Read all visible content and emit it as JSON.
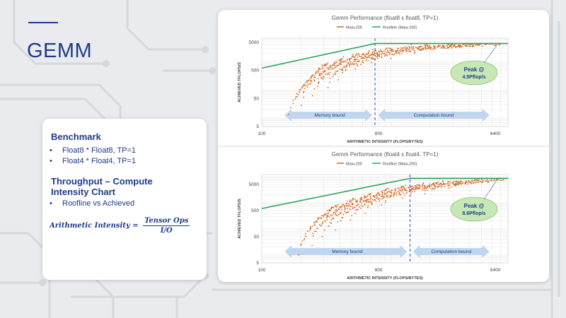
{
  "slide": {
    "title": "GEMM",
    "benchmark_heading": "Benchmark",
    "benchmark_items": [
      "Float8 * Float8, TP=1",
      "Float4 * Float4, TP=1"
    ],
    "throughput_heading_line1": "Throughput – Compute",
    "throughput_heading_line2": "Intensity Chart",
    "throughput_items": [
      "Roofline vs Achieved"
    ],
    "formula_lhs": "Arithmetic Intensity =",
    "formula_num": "Tensor Ops",
    "formula_den": "I/O"
  },
  "colors": {
    "accent": "#1f3a8a",
    "maia": "#d2691e",
    "roofline": "#2ca35a",
    "ridge": "#2f4f9f",
    "arrow": "#b8d2ec",
    "callout": "#c6e8b4"
  },
  "chart_data": [
    {
      "type": "scatter",
      "title": "Gemm Performance (float8 x float8, TP=1)",
      "xlabel": "ARITHMETIC INTENSITY (FLOPS/BYTES)",
      "ylabel": "ACHIEVED TFLOPS/S",
      "x_scale": "log",
      "y_scale": "log",
      "xlim": [
        100,
        8000
      ],
      "ylim": [
        5,
        7000
      ],
      "x_ticks": [
        "100",
        "800",
        "6400"
      ],
      "y_ticks": [
        "5000",
        "500",
        "50",
        "5"
      ],
      "legend": [
        "Maia-200",
        "Roofline (Maia-200)"
      ],
      "roofline": {
        "x": [
          100,
          750,
          8000
        ],
        "y": [
          600,
          4500,
          4500
        ]
      },
      "ridge_x": 750,
      "regions": [
        "Memory bound",
        "Computation bound"
      ],
      "annotation": "Peak @\n4.5Pflop/s",
      "bands": [
        {
          "x0": 165,
          "x1": 320,
          "y0": 12,
          "y1": 900
        },
        {
          "x0": 200,
          "x1": 430,
          "y0": 30,
          "y1": 1400
        },
        {
          "x0": 250,
          "x1": 560,
          "y0": 60,
          "y1": 2000
        },
        {
          "x0": 320,
          "x1": 750,
          "y0": 120,
          "y1": 2700
        },
        {
          "x0": 400,
          "x1": 1000,
          "y0": 250,
          "y1": 3200
        },
        {
          "x0": 520,
          "x1": 1400,
          "y0": 500,
          "y1": 3600
        },
        {
          "x0": 700,
          "x1": 2000,
          "y0": 900,
          "y1": 3900
        },
        {
          "x0": 1000,
          "x1": 3000,
          "y0": 1500,
          "y1": 4100
        },
        {
          "x0": 1500,
          "x1": 4500,
          "y0": 2200,
          "y1": 4250
        },
        {
          "x0": 2500,
          "x1": 7000,
          "y0": 3000,
          "y1": 4400
        }
      ]
    },
    {
      "type": "scatter",
      "title": "Gemm Performance (float4 x float4, TP=1)",
      "xlabel": "ARITHMETIC INTENSITY (FLOPS/BYTES)",
      "ylabel": "ACHIEVED TFLOPS/S",
      "x_scale": "log",
      "y_scale": "log",
      "xlim": [
        100,
        8000
      ],
      "ylim": [
        5,
        12000
      ],
      "x_ticks": [
        "100",
        "800",
        "6400"
      ],
      "y_ticks": [
        "5000",
        "500",
        "50",
        "5"
      ],
      "legend": [
        "Maia-200",
        "Roofline (Maia-200)"
      ],
      "roofline": {
        "x": [
          100,
          1400,
          8000
        ],
        "y": [
          600,
          8600,
          8600
        ]
      },
      "ridge_x": 1400,
      "regions": [
        "Memory bound",
        "Computation bound"
      ],
      "annotation": "Peak @\n8.6Pflop/s",
      "bands": [
        {
          "x0": 190,
          "x1": 380,
          "y0": 10,
          "y1": 800
        },
        {
          "x0": 240,
          "x1": 520,
          "y0": 25,
          "y1": 1400
        },
        {
          "x0": 300,
          "x1": 700,
          "y0": 50,
          "y1": 2200
        },
        {
          "x0": 380,
          "x1": 950,
          "y0": 100,
          "y1": 3200
        },
        {
          "x0": 480,
          "x1": 1300,
          "y0": 200,
          "y1": 4300
        },
        {
          "x0": 620,
          "x1": 1800,
          "y0": 400,
          "y1": 5300
        },
        {
          "x0": 850,
          "x1": 2500,
          "y0": 800,
          "y1": 6200
        },
        {
          "x0": 1200,
          "x1": 3500,
          "y0": 1500,
          "y1": 6900
        },
        {
          "x0": 1800,
          "x1": 5000,
          "y0": 2500,
          "y1": 7400
        },
        {
          "x0": 2800,
          "x1": 7200,
          "y0": 3800,
          "y1": 7800
        }
      ]
    }
  ]
}
